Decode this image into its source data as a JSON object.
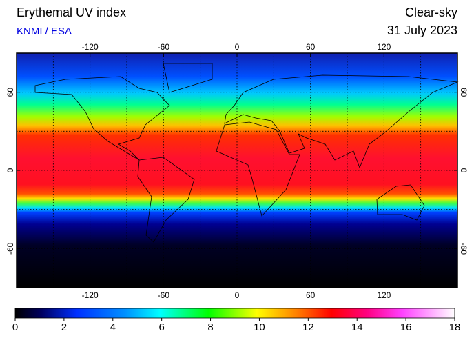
{
  "header": {
    "title": "Erythemal UV index",
    "subtitle": "KNMI / ESA",
    "condition": "Clear-sky",
    "date": "31 July 2023"
  },
  "map": {
    "lonlim": [
      -180,
      180
    ],
    "latlim": [
      -90,
      90
    ],
    "lon_ticks": [
      -120,
      -60,
      0,
      60,
      120
    ],
    "lat_ticks": [
      60,
      0,
      -60
    ],
    "grid_lon": [
      -150,
      -120,
      -90,
      -60,
      -30,
      0,
      30,
      60,
      90,
      120,
      150
    ],
    "grid_lat": [
      60,
      30,
      0,
      -30,
      -60
    ]
  },
  "colorbar": {
    "lim": [
      0,
      18
    ],
    "ticks": [
      0,
      2,
      4,
      6,
      8,
      10,
      12,
      14,
      16,
      18
    ]
  }
}
